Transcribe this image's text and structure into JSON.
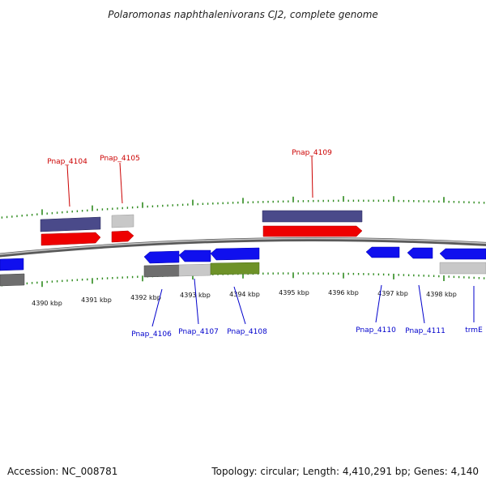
{
  "title": "Polaromonas naphthalenivorans CJ2, complete genome",
  "footer": {
    "accession": "Accession: NC_008781",
    "summary": "Topology: circular; Length: 4,410,291 bp; Genes: 4,140"
  },
  "colors": {
    "backbone": "#8c8c8c",
    "tick": "#2e8b1e",
    "forward_label": "#cc0000",
    "reverse_label": "#0000cc",
    "red_gene": "#ee0000",
    "blue_gene": "#1010ee",
    "slate_gene": "#4a4a8a",
    "gray_gene": "#6e6e6e",
    "lightgray_gene": "#c8c8c8",
    "green_gene": "#6e9228"
  },
  "scale_labels": [
    "4390 kbp",
    "4391 kbp",
    "4392 kbp",
    "4393 kbp",
    "4394 kbp",
    "4395 kbp",
    "4396 kbp",
    "4397 kbp",
    "4398 kbp"
  ],
  "forward_labels": [
    "Pnap_4104",
    "Pnap_4105",
    "Pnap_4109"
  ],
  "reverse_labels": [
    "Pnap_4106",
    "Pnap_4107",
    "Pnap_4108",
    "Pnap_4110",
    "Pnap_4111",
    "trmE"
  ]
}
